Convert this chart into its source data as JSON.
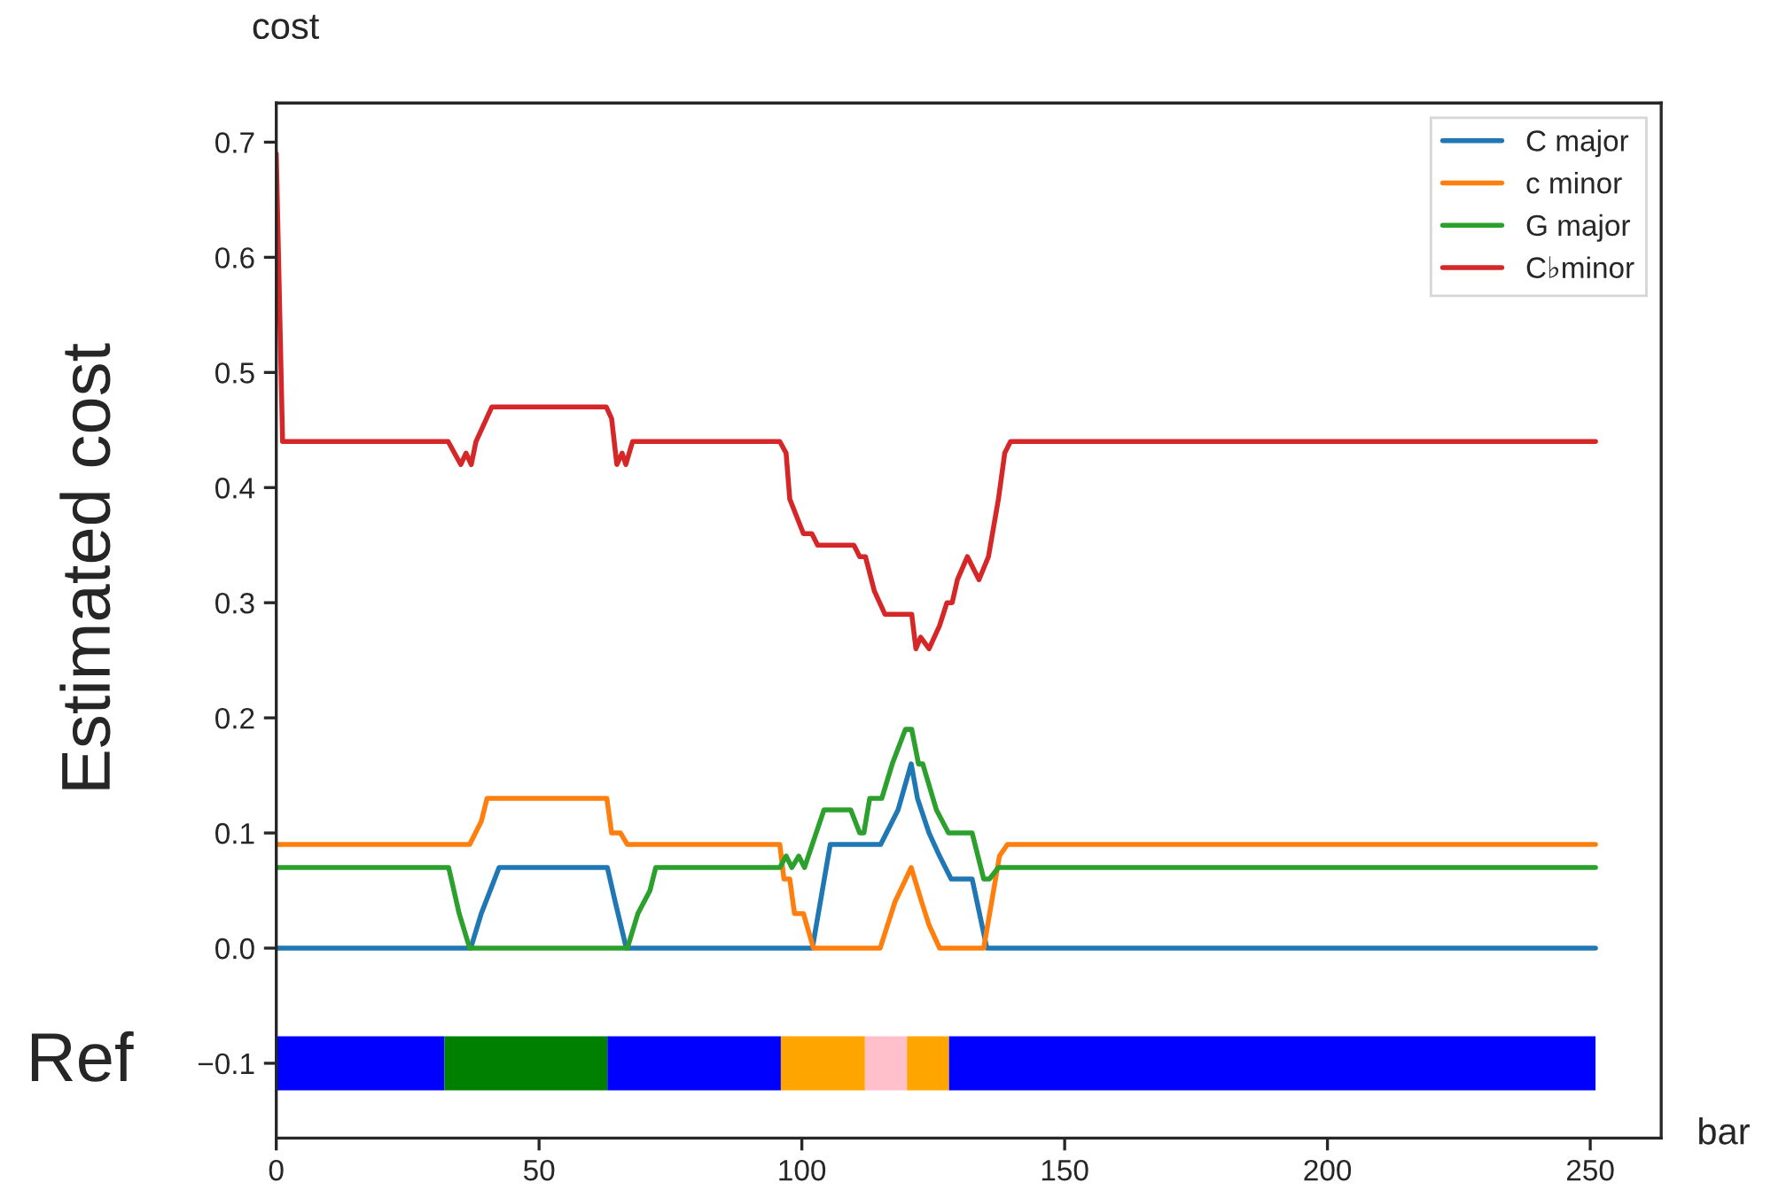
{
  "chart_data": {
    "type": "line",
    "xlabel": "bar",
    "ylabel": "Estimated cost",
    "annotations": [
      "cost",
      "Ref"
    ],
    "xlim": [
      0,
      263.5
    ],
    "ylim": [
      -0.165,
      0.734
    ],
    "xticks": [
      0,
      50,
      100,
      150,
      200,
      250
    ],
    "yticks": [
      {
        "value": -0.1,
        "label": "−0.1"
      },
      {
        "value": 0,
        "label": "0.0"
      },
      {
        "value": 0.1,
        "label": "0.1"
      },
      {
        "value": 0.2,
        "label": "0.2"
      },
      {
        "value": 0.3,
        "label": "0.3"
      },
      {
        "value": 0.4,
        "label": "0.4"
      },
      {
        "value": 0.5,
        "label": "0.5"
      },
      {
        "value": 0.6,
        "label": "0.6"
      },
      {
        "value": 0.7,
        "label": "0.7"
      }
    ],
    "grid": false,
    "legend": "top right",
    "series": [
      {
        "name": "C major",
        "color": "#1f77b4",
        "x": [
          0,
          37,
          39,
          40.7,
          42.4,
          63,
          64.5,
          66.6,
          102,
          105.4,
          115,
          118.3,
          120.8,
          122,
          124.2,
          126.2,
          128.4,
          132.4,
          135.2,
          251
        ],
        "values": [
          0,
          0,
          0.03,
          0.05,
          0.07,
          0.07,
          0.04,
          0,
          0,
          0.09,
          0.09,
          0.12,
          0.16,
          0.13,
          0.1,
          0.08,
          0.06,
          0.06,
          0,
          0
        ]
      },
      {
        "name": "c minor",
        "color": "#ff7f0e",
        "x": [
          0,
          36.8,
          39,
          40.1,
          62.9,
          63.8,
          65.5,
          66.8,
          95.8,
          96.6,
          97.7,
          98.6,
          100.3,
          102.2,
          114.9,
          117.7,
          120.8,
          122.8,
          124.2,
          126.2,
          134.6,
          137.6,
          139.1,
          251
        ],
        "values": [
          0.09,
          0.09,
          0.11,
          0.13,
          0.13,
          0.1,
          0.1,
          0.09,
          0.09,
          0.06,
          0.06,
          0.03,
          0.03,
          0,
          0,
          0.04,
          0.07,
          0.04,
          0.02,
          0,
          0,
          0.08,
          0.09,
          0.09
        ]
      },
      {
        "name": "G major",
        "color": "#2ca02c",
        "x": [
          0,
          32.8,
          34.8,
          36.8,
          66.8,
          68.8,
          71.1,
          72.2,
          95.8,
          97,
          98.1,
          99.4,
          100.5,
          104.2,
          109.3,
          111,
          111.8,
          112.9,
          115.2,
          117.2,
          119.7,
          120.9,
          122.2,
          123,
          125.6,
          127.9,
          132.4,
          134.6,
          135.7,
          137.4,
          251
        ],
        "values": [
          0.07,
          0.07,
          0.03,
          0,
          0,
          0.03,
          0.05,
          0.07,
          0.07,
          0.08,
          0.07,
          0.08,
          0.07,
          0.12,
          0.12,
          0.1,
          0.1,
          0.13,
          0.13,
          0.16,
          0.19,
          0.19,
          0.16,
          0.16,
          0.12,
          0.1,
          0.1,
          0.06,
          0.06,
          0.07,
          0.07
        ]
      },
      {
        "name": "C♭minor",
        "color": "#d62728",
        "x": [
          0,
          1.2,
          32.7,
          35.1,
          36.1,
          37.1,
          38,
          41,
          62.8,
          63.8,
          64.8,
          65.8,
          66.5,
          67.8,
          95.8,
          97,
          97.7,
          100.3,
          101.9,
          103,
          109.9,
          111,
          112.1,
          113.8,
          115.8,
          120.9,
          121.7,
          122.6,
          124.2,
          126.2,
          127.6,
          128.6,
          129.6,
          131.5,
          133.7,
          135.5,
          137.4,
          138.6,
          139.7,
          251
        ],
        "values": [
          0.69,
          0.44,
          0.44,
          0.42,
          0.43,
          0.42,
          0.44,
          0.47,
          0.47,
          0.46,
          0.42,
          0.43,
          0.42,
          0.44,
          0.44,
          0.43,
          0.39,
          0.36,
          0.36,
          0.35,
          0.35,
          0.34,
          0.34,
          0.31,
          0.29,
          0.29,
          0.26,
          0.27,
          0.26,
          0.28,
          0.3,
          0.3,
          0.32,
          0.34,
          0.32,
          0.34,
          0.39,
          0.43,
          0.44,
          0.44
        ]
      },
      {
        "color": "#0000ff",
        "x": [
          0,
          32
        ],
        "values": [
          -0.1,
          -0.1
        ]
      },
      {
        "color": "#008000",
        "x": [
          32,
          63
        ],
        "values": [
          -0.1,
          -0.1
        ]
      },
      {
        "color": "#0000ff",
        "x": [
          63,
          96
        ],
        "values": [
          -0.1,
          -0.1
        ]
      },
      {
        "color": "#ffa500",
        "x": [
          96,
          112
        ],
        "values": [
          -0.1,
          -0.1
        ]
      },
      {
        "color": "#ffc0cb",
        "x": [
          112,
          120
        ],
        "values": [
          -0.1,
          -0.1
        ]
      },
      {
        "color": "#ffa500",
        "x": [
          120,
          128
        ],
        "values": [
          -0.1,
          -0.1
        ]
      },
      {
        "color": "#0000ff",
        "x": [
          128,
          251
        ],
        "values": [
          -0.1,
          -0.1
        ]
      }
    ]
  }
}
